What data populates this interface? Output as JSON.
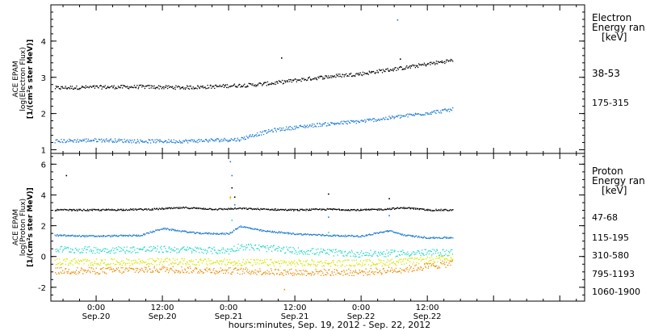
{
  "x_axis": {
    "label": "hours:minutes, Sep. 19, 2012 - Sep. 22, 2012",
    "range_hours": [
      -8.2,
      88.5
    ],
    "ticks": [
      {
        "hours": 0,
        "time": "0:00",
        "date": "Sep.20"
      },
      {
        "hours": 12,
        "time": "12:00",
        "date": "Sep.20"
      },
      {
        "hours": 24,
        "time": "0:00",
        "date": "Sep.21"
      },
      {
        "hours": 36,
        "time": "12:00",
        "date": "Sep.21"
      },
      {
        "hours": 48,
        "time": "0:00",
        "date": "Sep.22"
      },
      {
        "hours": 60,
        "time": "12:00",
        "date": "Sep.22"
      }
    ],
    "minor_tick_step_hours": 3
  },
  "chart_data": [
    {
      "type": "scatter",
      "panel": "electron",
      "ylabel_lines": [
        "ACE EPAM",
        "log(Electron Flux)",
        "[1/(cm²s ster MeV)]"
      ],
      "ylim": [
        0.9,
        5.0
      ],
      "yticks": [
        1,
        2,
        3,
        4
      ],
      "yminor_step": 0.2,
      "legend_title": [
        "Electron",
        "Energy ran",
        "[keV]"
      ],
      "x_unit": "hours since 0:00 Sep.20, 2012",
      "series": [
        {
          "name": "38-53",
          "color": "#000000",
          "x": [
            -7.5,
            0,
            8,
            16,
            22,
            24,
            28,
            32,
            36,
            40,
            44,
            48,
            52,
            56,
            60,
            64.5
          ],
          "y": [
            2.72,
            2.74,
            2.75,
            2.73,
            2.76,
            2.78,
            2.8,
            2.85,
            2.93,
            3.0,
            3.06,
            3.11,
            3.2,
            3.28,
            3.38,
            3.48
          ],
          "spikes": [
            {
              "x": 33.5,
              "y": 3.55
            },
            {
              "x": 55,
              "y": 3.52
            }
          ]
        },
        {
          "name": "175-315",
          "color": "#1a7ad6",
          "x": [
            -7.5,
            0,
            8,
            16,
            22,
            26,
            28,
            32,
            36,
            40,
            44,
            48,
            52,
            56,
            60,
            64.5
          ],
          "y": [
            1.25,
            1.28,
            1.25,
            1.25,
            1.28,
            1.3,
            1.4,
            1.55,
            1.63,
            1.7,
            1.75,
            1.8,
            1.87,
            1.95,
            2.03,
            2.12
          ],
          "spikes": [
            {
              "x": 54.5,
              "y": 4.6
            }
          ]
        }
      ]
    },
    {
      "type": "scatter",
      "panel": "proton",
      "ylabel_lines": [
        "ACE EPAM",
        "log(Proton Flux)",
        "[1/(cm²s ster MeV)]"
      ],
      "ylim": [
        -2.9,
        6.7
      ],
      "yticks": [
        -2,
        0,
        2,
        4,
        6
      ],
      "yminor_step": 0.5,
      "legend_title": [
        "Proton",
        "Energy ran",
        "[keV]"
      ],
      "x_unit": "hours since 0:00 Sep.20, 2012",
      "series": [
        {
          "name": "47-68",
          "color": "#000000",
          "x": [
            -7.5,
            0,
            10,
            16,
            22,
            26,
            30,
            36,
            42,
            48,
            52,
            56,
            60,
            64.5
          ],
          "y": [
            3.05,
            3.05,
            3.1,
            3.2,
            3.1,
            3.15,
            3.1,
            3.05,
            3.1,
            3.05,
            3.1,
            3.2,
            3.05,
            3.05
          ],
          "spikes": [
            {
              "x": -5.5,
              "y": 5.3
            },
            {
              "x": 24.5,
              "y": 4.5
            },
            {
              "x": 25,
              "y": 3.9
            },
            {
              "x": 42,
              "y": 4.1
            },
            {
              "x": 53,
              "y": 3.8
            }
          ]
        },
        {
          "name": "115-195",
          "color": "#1a7ad6",
          "x": [
            -7.5,
            0,
            8,
            12,
            18,
            24,
            26,
            30,
            36,
            42,
            48,
            53,
            56,
            60,
            64.5
          ],
          "y": [
            1.4,
            1.35,
            1.4,
            1.85,
            1.55,
            1.5,
            2.0,
            1.7,
            1.5,
            1.4,
            1.35,
            1.7,
            1.4,
            1.25,
            1.25
          ],
          "spikes": [
            {
              "x": 24.2,
              "y": 6.2
            },
            {
              "x": 24.5,
              "y": 5.3
            },
            {
              "x": 25,
              "y": 3.4
            },
            {
              "x": 42,
              "y": 2.6
            },
            {
              "x": 53,
              "y": 2.7
            }
          ]
        },
        {
          "name": "310-580",
          "color": "#22d8c8",
          "x": [
            -7.5,
            0,
            12,
            24,
            26,
            36,
            48,
            56,
            64.5
          ],
          "y": [
            0.5,
            0.45,
            0.5,
            0.4,
            0.7,
            0.4,
            0.2,
            0.25,
            0.3
          ],
          "spikes": [
            {
              "x": 24.5,
              "y": 2.4
            },
            {
              "x": 42,
              "y": 1.6
            }
          ]
        },
        {
          "name": "795-1193",
          "color": "#d6e800",
          "x": [
            -7.5,
            0,
            12,
            24,
            36,
            48,
            56,
            64.5
          ],
          "y": [
            -0.3,
            -0.35,
            -0.3,
            -0.35,
            -0.4,
            -0.4,
            -0.3,
            -0.1
          ],
          "spikes": [
            {
              "x": 24.2,
              "y": 3.8
            }
          ]
        },
        {
          "name": "1060-1900",
          "color": "#f08c00",
          "x": [
            -7.5,
            0,
            12,
            24,
            36,
            48,
            56,
            64.5
          ],
          "y": [
            -0.9,
            -0.9,
            -0.8,
            -0.9,
            -1.0,
            -1.0,
            -0.8,
            -0.4
          ],
          "spikes": [
            {
              "x": 24.2,
              "y": 3.9
            },
            {
              "x": 34,
              "y": -2.1
            }
          ]
        }
      ]
    }
  ]
}
